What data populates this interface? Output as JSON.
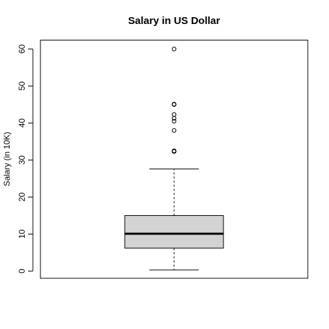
{
  "chart_data": {
    "type": "boxplot",
    "title": "Salary in US Dollar",
    "xlabel": "",
    "ylabel": "Salary (in 10K)",
    "ylim": [
      -2,
      62.5
    ],
    "yticks": [
      0,
      10,
      20,
      30,
      40,
      50,
      60
    ],
    "ytick_labels": [
      "0",
      "10",
      "20",
      "30",
      "40",
      "50",
      "60"
    ],
    "grid": false,
    "box": {
      "whisker_low": 0.3,
      "q1": 6.2,
      "median": 10.1,
      "q3": 15.0,
      "whisker_high": 27.6,
      "outliers": [
        32.3,
        32.5,
        38.0,
        40.5,
        41.3,
        42.3,
        45.0,
        45.1,
        60.0
      ],
      "fill_color": "#d3d3d3"
    }
  }
}
